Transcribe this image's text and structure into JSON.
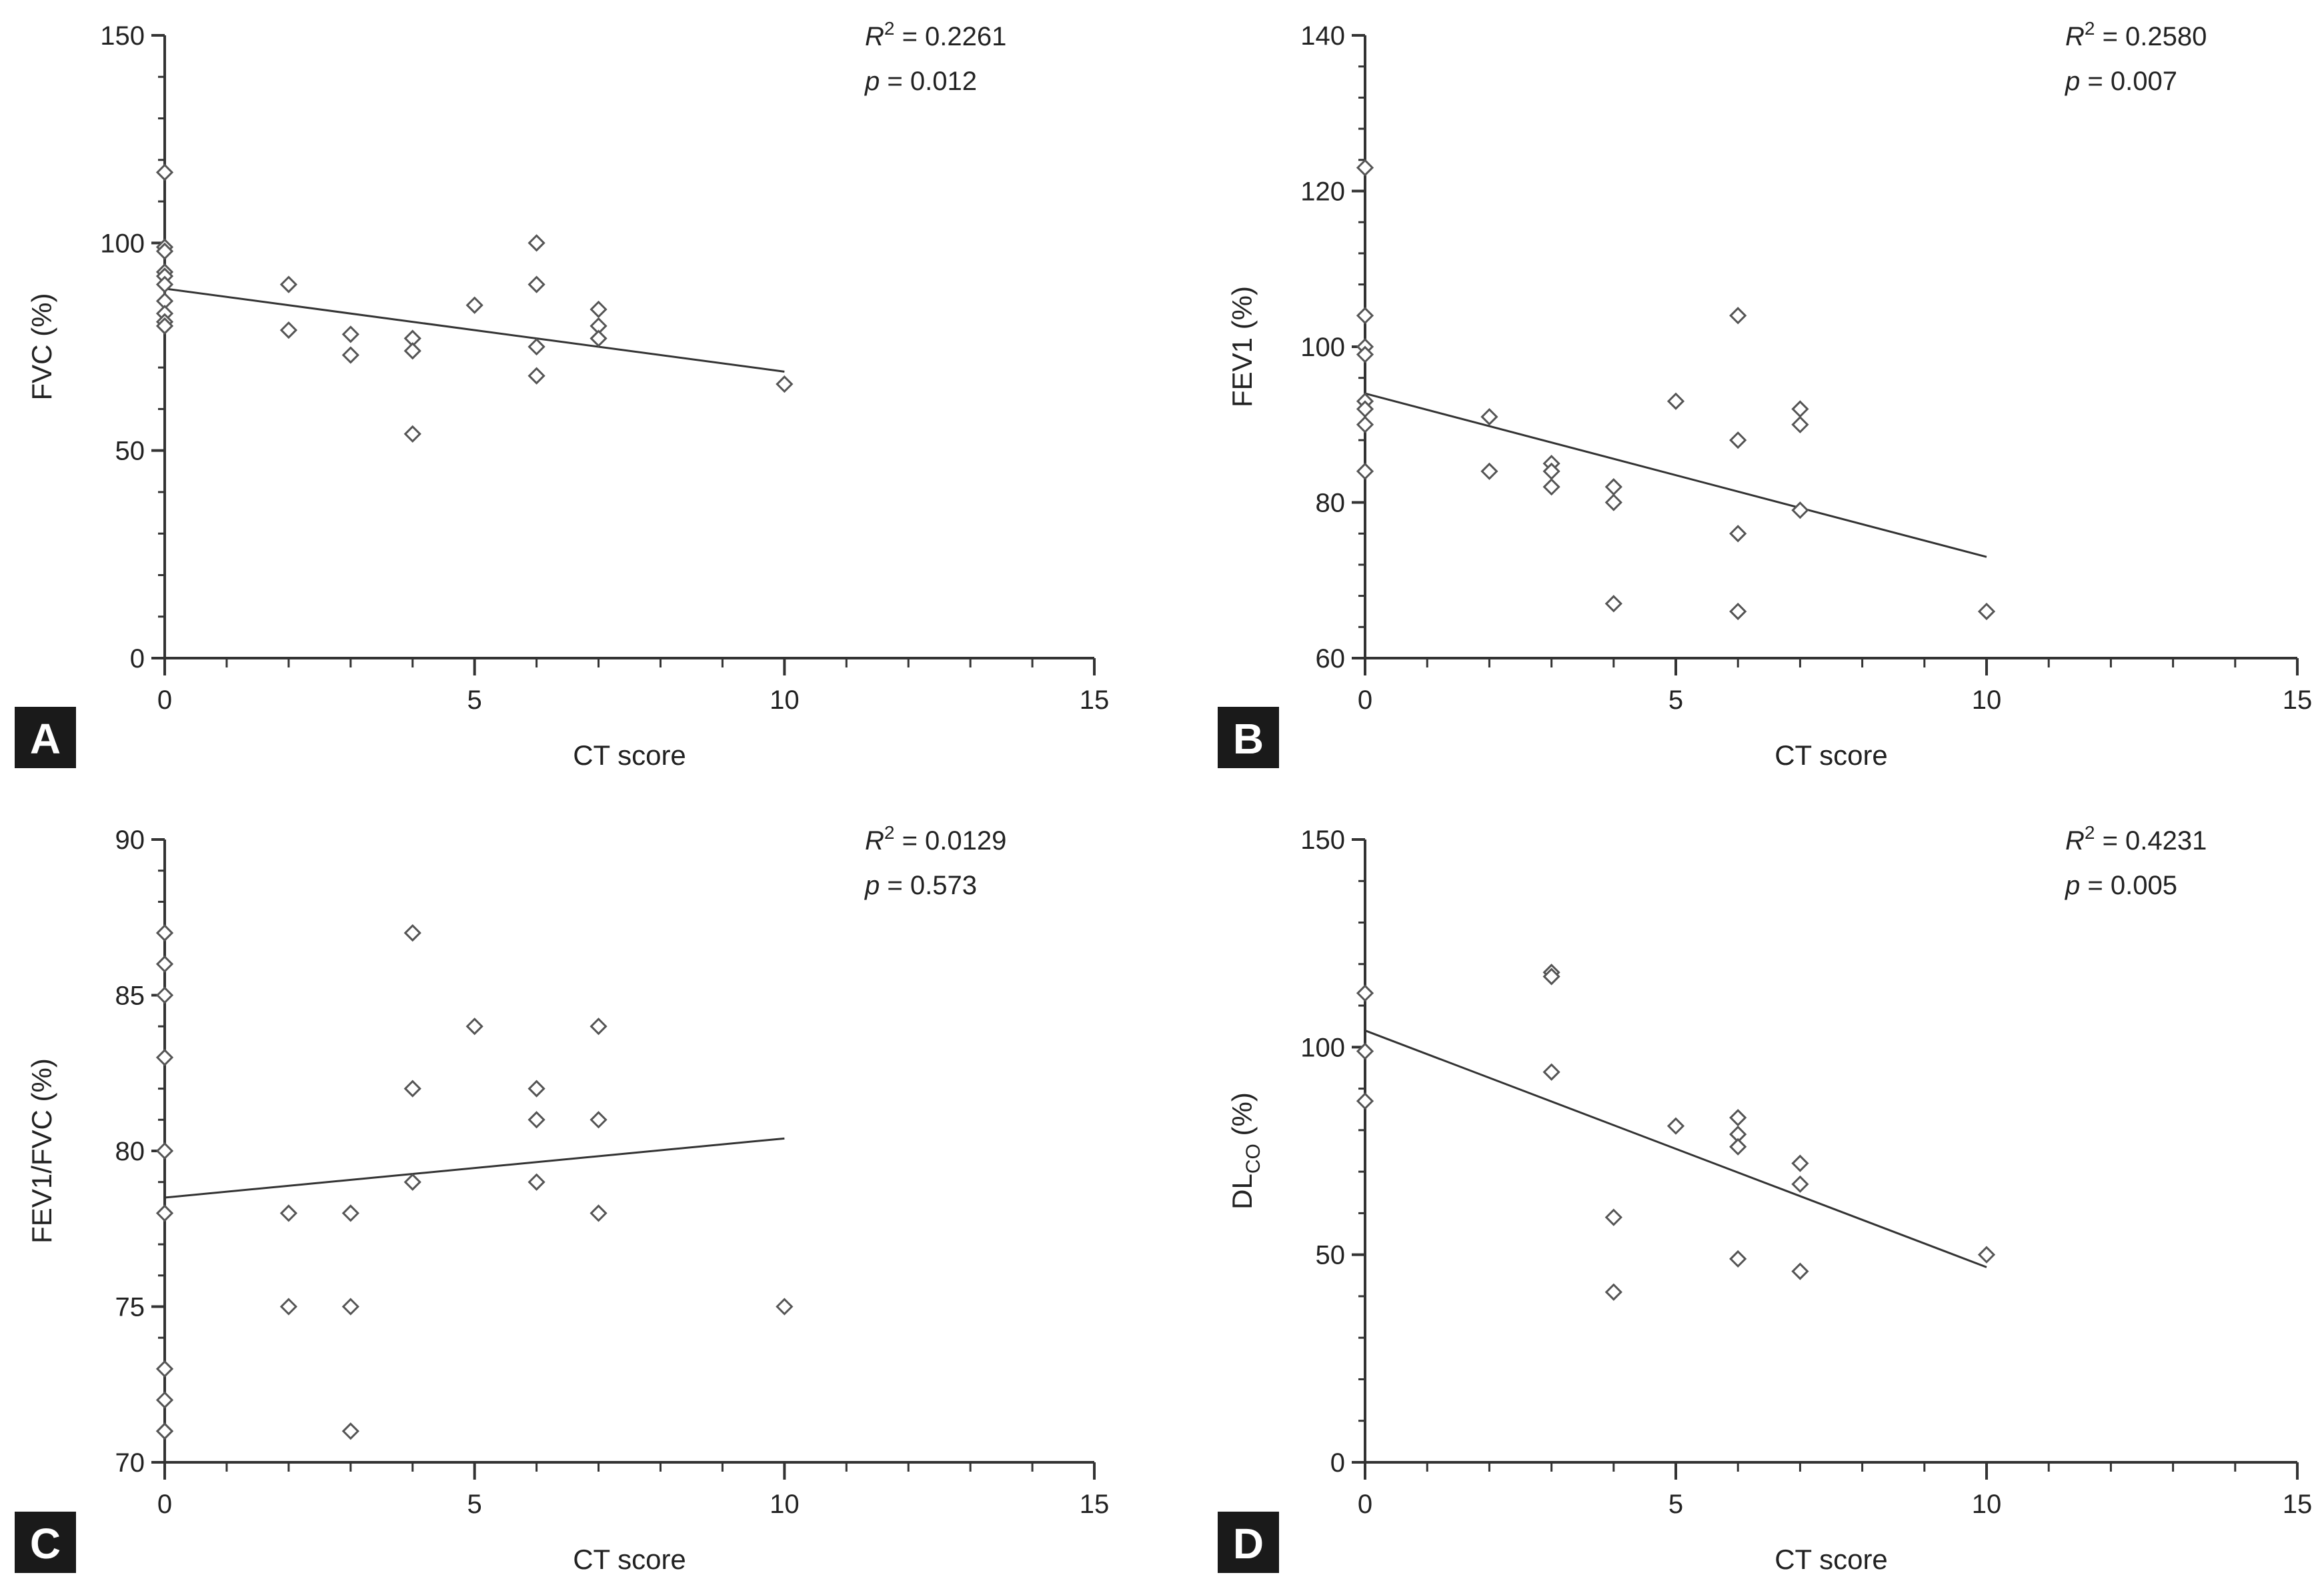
{
  "figure": {
    "title": ""
  },
  "chart_data": [
    {
      "panel": "A",
      "type": "scatter",
      "title": "",
      "xlabel": "CT score",
      "ylabel": "FVC (%)",
      "ylabel_sub": "",
      "ylabel_suffix": "",
      "xlim": [
        0,
        15
      ],
      "ylim": [
        0,
        150
      ],
      "xticks": [
        0,
        5,
        10,
        15
      ],
      "yticks": [
        0,
        50,
        100,
        150
      ],
      "xtick_labels": [
        "0",
        "5",
        "10",
        "15"
      ],
      "ytick_labels": [
        "0",
        "50",
        "100",
        "150"
      ],
      "r2_label": "R",
      "r2_sup": "2",
      "r2_value": " = 0.2261",
      "p_label": "p",
      "p_value": " = 0.012",
      "trend": {
        "x": [
          0,
          10
        ],
        "y": [
          89,
          69
        ]
      },
      "points": {
        "x": [
          0,
          0,
          0,
          0,
          0,
          0,
          0,
          0,
          0,
          0,
          2,
          2,
          3,
          3,
          4,
          4,
          4,
          5,
          6,
          6,
          6,
          6,
          7,
          7,
          7,
          10
        ],
        "y": [
          117,
          99,
          98,
          93,
          92,
          90,
          86,
          83,
          81,
          80,
          90,
          79,
          78,
          73,
          77,
          74,
          54,
          85,
          100,
          90,
          75,
          68,
          84,
          80,
          77,
          66
        ]
      }
    },
    {
      "panel": "B",
      "type": "scatter",
      "title": "",
      "xlabel": "CT score",
      "ylabel": "FEV1 (%)",
      "ylabel_sub": "",
      "ylabel_suffix": "",
      "xlim": [
        0,
        15
      ],
      "ylim": [
        60,
        140
      ],
      "xticks": [
        0,
        5,
        10,
        15
      ],
      "yticks": [
        60,
        80,
        100,
        120,
        140
      ],
      "xtick_labels": [
        "0",
        "5",
        "10",
        "15"
      ],
      "ytick_labels": [
        "60",
        "80",
        "100",
        "120",
        "140"
      ],
      "r2_label": "R",
      "r2_sup": "2",
      "r2_value": " = 0.2580",
      "p_label": "p",
      "p_value": " = 0.007",
      "trend": {
        "x": [
          0,
          10
        ],
        "y": [
          94,
          73
        ]
      },
      "points": {
        "x": [
          0,
          0,
          0,
          0,
          0,
          0,
          0,
          0,
          2,
          2,
          3,
          3,
          3,
          4,
          4,
          4,
          5,
          6,
          6,
          6,
          6,
          7,
          7,
          7,
          10
        ],
        "y": [
          123,
          104,
          100,
          99,
          93,
          92,
          90,
          84,
          91,
          84,
          85,
          84,
          82,
          82,
          80,
          67,
          93,
          104,
          88,
          76,
          66,
          92,
          90,
          79,
          66
        ]
      }
    },
    {
      "panel": "C",
      "type": "scatter",
      "title": "",
      "xlabel": "CT score",
      "ylabel": "FEV1/FVC (%)",
      "ylabel_sub": "",
      "ylabel_suffix": "",
      "xlim": [
        0,
        15
      ],
      "ylim": [
        70,
        90
      ],
      "xticks": [
        0,
        5,
        10,
        15
      ],
      "yticks": [
        70,
        75,
        80,
        85,
        90
      ],
      "xtick_labels": [
        "0",
        "5",
        "10",
        "15"
      ],
      "ytick_labels": [
        "70",
        "75",
        "80",
        "85",
        "90"
      ],
      "r2_label": "R",
      "r2_sup": "2",
      "r2_value": " = 0.0129",
      "p_label": "p",
      "p_value": " = 0.573",
      "trend": {
        "x": [
          0,
          10
        ],
        "y": [
          78.5,
          80.4
        ]
      },
      "points": {
        "x": [
          0,
          0,
          0,
          0,
          0,
          0,
          0,
          0,
          0,
          0,
          2,
          2,
          3,
          3,
          3,
          4,
          4,
          4,
          5,
          6,
          6,
          6,
          7,
          7,
          7,
          10
        ],
        "y": [
          87,
          86,
          85,
          83,
          80,
          78,
          73,
          72,
          71,
          71,
          78,
          75,
          78,
          75,
          71,
          87,
          82,
          79,
          84,
          82,
          81,
          79,
          84,
          81,
          78,
          75
        ]
      }
    },
    {
      "panel": "D",
      "type": "scatter",
      "title": "",
      "xlabel": "CT score",
      "ylabel": "DL",
      "ylabel_sub": "CO",
      "ylabel_suffix": " (%)",
      "xlim": [
        0,
        15
      ],
      "ylim": [
        0,
        150
      ],
      "xticks": [
        0,
        5,
        10,
        15
      ],
      "yticks": [
        0,
        50,
        100,
        150
      ],
      "xtick_labels": [
        "0",
        "5",
        "10",
        "15"
      ],
      "ytick_labels": [
        "0",
        "50",
        "100",
        "150"
      ],
      "r2_label": "R",
      "r2_sup": "2",
      "r2_value": " = 0.4231",
      "p_label": "p",
      "p_value": " = 0.005",
      "trend": {
        "x": [
          0,
          10
        ],
        "y": [
          104,
          47
        ]
      },
      "points": {
        "x": [
          0,
          0,
          0,
          3,
          3,
          3,
          4,
          4,
          5,
          6,
          6,
          6,
          6,
          7,
          7,
          7,
          10
        ],
        "y": [
          113,
          99,
          87,
          118,
          117,
          94,
          59,
          41,
          81,
          83,
          79,
          76,
          49,
          72,
          67,
          46,
          50
        ]
      }
    }
  ]
}
